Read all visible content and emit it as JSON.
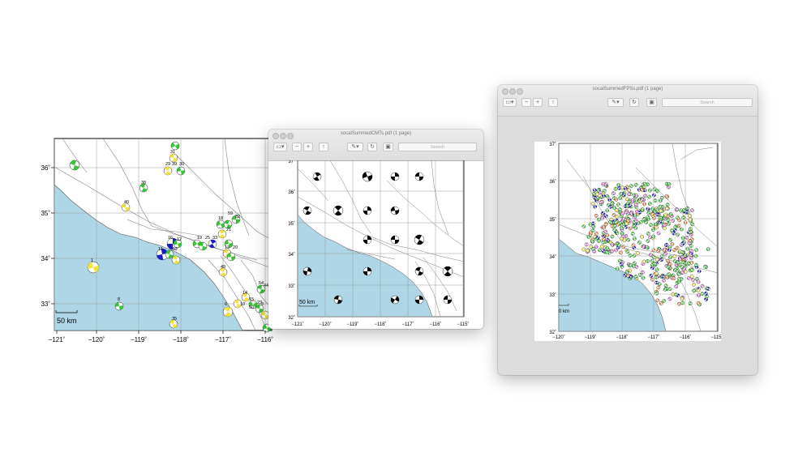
{
  "window_cmts": {
    "title": "socalSummedCMTs.pdf (1 page)",
    "search_placeholder": "Search"
  },
  "window_fps": {
    "title": "socalSummedFPSs.pdf (1 page)",
    "search_placeholder": "Search"
  },
  "map_left": {
    "lon_ticks": [
      "−121˚",
      "−120˚",
      "−119˚",
      "−118˚",
      "−117˚",
      "−116˚"
    ],
    "lat_ticks": [
      "36˚",
      "35˚",
      "34˚",
      "33˚"
    ],
    "scale_label": "50 km",
    "event_labels": [
      "31",
      "29",
      "39",
      "30",
      "38",
      "40",
      "16",
      "12",
      "11",
      "52",
      "19",
      "25",
      "33",
      "18",
      "59",
      "32",
      "21",
      "13",
      "20",
      "49",
      "1",
      "54",
      "44",
      "14",
      "15",
      "23",
      "3",
      "35",
      "8",
      "6",
      "10",
      "50"
    ]
  },
  "map_mid": {
    "lon_ticks": [
      "−121˚",
      "−120˚",
      "−119˚",
      "−118˚",
      "−117˚",
      "−116˚",
      "−115˚"
    ],
    "lat_ticks": [
      "37˚",
      "36˚",
      "35˚",
      "34˚",
      "33˚",
      "32˚"
    ],
    "scale_label": "50 km"
  },
  "map_right": {
    "lon_ticks": [
      "−120˚",
      "−119˚",
      "−118˚",
      "−117˚",
      "−116˚",
      "−115˚"
    ],
    "lat_ticks": [
      "37˚",
      "36˚",
      "35˚",
      "34˚",
      "33˚",
      "32˚"
    ],
    "scale_label": "0 km"
  },
  "colors": {
    "ocean": "#aed6e6",
    "grid": "#9a9a9a",
    "fault": "#808080",
    "green": "#35c535",
    "yellow": "#f2e23c",
    "blue": "#1c1cc6"
  }
}
